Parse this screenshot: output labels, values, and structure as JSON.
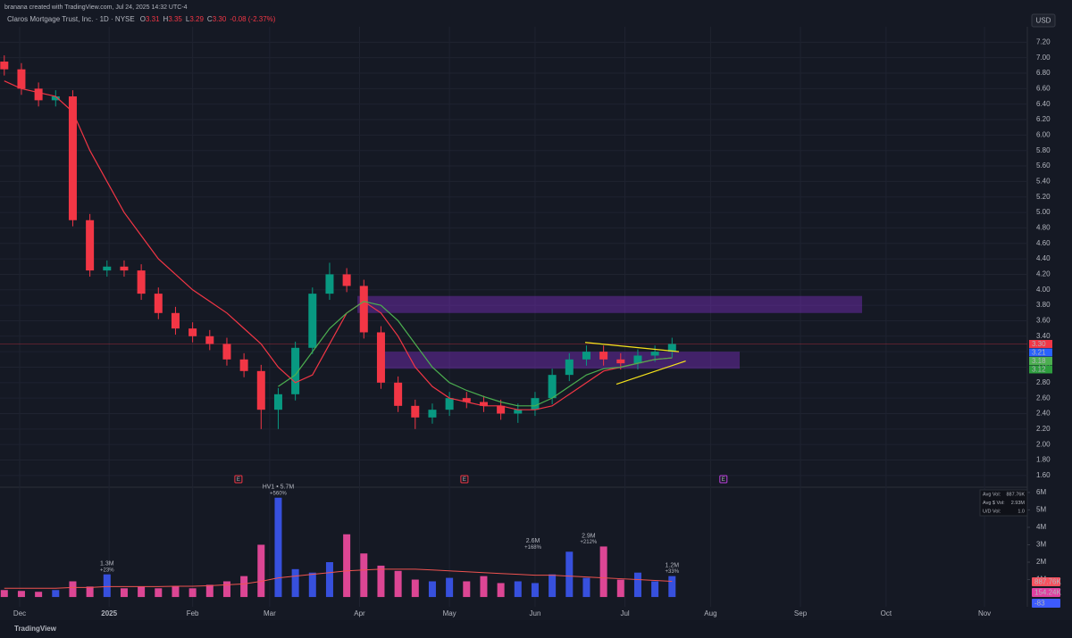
{
  "header": {
    "credit": "branana created with TradingView.com, Jul 24, 2025 14:32 UTC-4",
    "symbol": "Claros Mortgage Trust, Inc. · 1D · NYSE",
    "quote_keys": [
      "O",
      "H",
      "L",
      "C"
    ],
    "currency": "USD"
  },
  "footer": {
    "brand": "TradingView"
  },
  "chart_data": {
    "type": "candlestick",
    "xlim": [
      0,
      240
    ],
    "xticks": [
      {
        "value": 4.6,
        "label": "Dec"
      },
      {
        "value": 25.5,
        "label": "2025",
        "bold": true
      },
      {
        "value": 45,
        "label": "Feb"
      },
      {
        "value": 63,
        "label": "Mar"
      },
      {
        "value": 84,
        "label": "Apr"
      },
      {
        "value": 105,
        "label": "May"
      },
      {
        "value": 125,
        "label": "Jun"
      },
      {
        "value": 146,
        "label": "Jul"
      },
      {
        "value": 166,
        "label": "Aug"
      },
      {
        "value": 187,
        "label": "Sep"
      },
      {
        "value": 207,
        "label": "Oct"
      },
      {
        "value": 230,
        "label": "Nov"
      }
    ],
    "ylim": [
      1.46,
      7.4
    ],
    "yticks": [
      {
        "value": 1.6,
        "label": "1.60"
      },
      {
        "value": 1.8,
        "label": "1.80"
      },
      {
        "value": 2.0,
        "label": "2.00"
      },
      {
        "value": 2.2,
        "label": "2.20"
      },
      {
        "value": 2.4,
        "label": "2.40"
      },
      {
        "value": 2.6,
        "label": "2.60"
      },
      {
        "value": 2.8,
        "label": "2.80"
      },
      {
        "value": 3.0,
        "label": "3.00"
      },
      {
        "value": 3.2,
        "label": "3.20"
      },
      {
        "value": 3.4,
        "label": "3.40"
      },
      {
        "value": 3.6,
        "label": "3.60"
      },
      {
        "value": 3.8,
        "label": "3.80"
      },
      {
        "value": 4.0,
        "label": "4.00"
      },
      {
        "value": 4.2,
        "label": "4.20"
      },
      {
        "value": 4.4,
        "label": "4.40"
      },
      {
        "value": 4.6,
        "label": "4.60"
      },
      {
        "value": 4.8,
        "label": "4.80"
      },
      {
        "value": 5.0,
        "label": "5.00"
      },
      {
        "value": 5.2,
        "label": "5.20"
      },
      {
        "value": 5.4,
        "label": "5.40"
      },
      {
        "value": 5.6,
        "label": "5.60"
      },
      {
        "value": 5.8,
        "label": "5.80"
      },
      {
        "value": 6.0,
        "label": "6.00"
      },
      {
        "value": 6.2,
        "label": "6.20"
      },
      {
        "value": 6.4,
        "label": "6.40"
      },
      {
        "value": 6.6,
        "label": "6.60"
      },
      {
        "value": 6.8,
        "label": "6.80"
      },
      {
        "value": 7.0,
        "label": "7.00"
      },
      {
        "value": 7.2,
        "label": "7.20"
      }
    ],
    "grid": true,
    "up_color": "#089981",
    "down_color": "#f23645",
    "quote": {
      "open": 3.31,
      "high": 3.35,
      "low": 3.29,
      "close": {
        "value": 3.3,
        "label": "3.30"
      },
      "change": {
        "value": -0.08,
        "label": "-0.08 (-2.37%)"
      }
    },
    "x": [
      1,
      5,
      9,
      13,
      17,
      21,
      25,
      29,
      33,
      37,
      41,
      45,
      49,
      53,
      57,
      61,
      65,
      69,
      73,
      77,
      81,
      85,
      89,
      93,
      97,
      101,
      105,
      109,
      113,
      117,
      121,
      125,
      129,
      133,
      137,
      141,
      145,
      149,
      153,
      157
    ],
    "open": [
      6.95,
      6.85,
      6.6,
      6.45,
      6.5,
      4.9,
      4.25,
      4.3,
      4.25,
      3.95,
      3.7,
      3.5,
      3.4,
      3.3,
      3.1,
      2.95,
      2.45,
      2.65,
      3.25,
      3.95,
      4.2,
      4.05,
      3.45,
      2.8,
      2.5,
      2.35,
      2.45,
      2.6,
      2.55,
      2.5,
      2.4,
      2.45,
      2.6,
      2.9,
      3.1,
      3.2,
      3.1,
      3.05,
      3.15,
      3.2
    ],
    "high": [
      7.03,
      6.93,
      6.68,
      6.58,
      6.58,
      4.98,
      4.38,
      4.38,
      4.33,
      4.03,
      3.78,
      3.58,
      3.48,
      3.38,
      3.18,
      3.03,
      2.73,
      3.33,
      4.03,
      4.35,
      4.28,
      4.13,
      3.53,
      2.88,
      2.58,
      2.53,
      2.68,
      2.68,
      2.63,
      2.58,
      2.53,
      2.68,
      2.98,
      3.18,
      3.28,
      3.28,
      3.18,
      3.23,
      3.28,
      3.38
    ],
    "low": [
      6.77,
      6.52,
      6.37,
      6.37,
      4.82,
      4.17,
      4.17,
      4.17,
      3.87,
      3.62,
      3.42,
      3.32,
      3.22,
      3.02,
      2.87,
      2.2,
      2.2,
      2.57,
      3.17,
      3.87,
      3.97,
      3.37,
      2.72,
      2.42,
      2.2,
      2.27,
      2.37,
      2.47,
      2.42,
      2.32,
      2.28,
      2.37,
      2.52,
      2.82,
      3.02,
      3.02,
      2.97,
      2.97,
      3.07,
      3.12
    ],
    "close": [
      6.85,
      6.6,
      6.45,
      6.5,
      4.9,
      4.25,
      4.3,
      4.25,
      3.95,
      3.7,
      3.5,
      3.4,
      3.3,
      3.1,
      2.95,
      2.45,
      2.65,
      3.25,
      3.95,
      4.2,
      4.05,
      3.45,
      2.8,
      2.5,
      2.35,
      2.45,
      2.6,
      2.55,
      2.5,
      2.4,
      2.45,
      2.6,
      2.9,
      3.1,
      3.2,
      3.1,
      3.05,
      3.15,
      3.2,
      3.3
    ],
    "lines": [
      {
        "color": "#f23645",
        "values": [
          6.7,
          6.6,
          6.55,
          6.5,
          6.3,
          5.8,
          5.4,
          5.0,
          4.7,
          4.4,
          4.2,
          4.0,
          3.85,
          3.7,
          3.5,
          3.3,
          3.0,
          2.8,
          2.9,
          3.3,
          3.7,
          3.85,
          3.7,
          3.4,
          3.0,
          2.75,
          2.6,
          2.55,
          2.5,
          2.5,
          2.45,
          2.45,
          2.5,
          2.65,
          2.8,
          2.95,
          3.0,
          3.05,
          3.1,
          3.12
        ]
      },
      {
        "color": "#4caf50",
        "values": [
          null,
          null,
          null,
          null,
          null,
          null,
          null,
          null,
          null,
          null,
          null,
          null,
          null,
          null,
          null,
          null,
          2.75,
          2.9,
          3.2,
          3.5,
          3.7,
          3.85,
          3.8,
          3.6,
          3.3,
          3.0,
          2.8,
          2.7,
          2.62,
          2.55,
          2.5,
          2.5,
          2.6,
          2.75,
          2.9,
          2.98,
          3.0,
          3.05,
          3.1,
          3.12
        ]
      }
    ],
    "zones": [
      {
        "x": [
          83.5,
          201.4
        ],
        "y": [
          3.7,
          3.92
        ],
        "color": "#7b2fbf"
      },
      {
        "x": [
          89.7,
          172.8
        ],
        "y": [
          2.98,
          3.2
        ],
        "color": "#7b2fbf"
      }
    ],
    "trendlines": [
      {
        "x": [
          136.7,
          158.6
        ],
        "y": [
          3.32,
          3.2
        ],
        "color": "#f5e21b"
      },
      {
        "x": [
          144,
          160.2
        ],
        "y": [
          2.78,
          3.08
        ],
        "color": "#f5e21b"
      }
    ],
    "price_labels": [
      {
        "value": 3.3,
        "label": "3.30",
        "color": "#f23645"
      },
      {
        "value": 3.21,
        "label": "3.21",
        "color": "#2962ff"
      },
      {
        "value": 3.18,
        "label": "3.18",
        "color": "#4caf50"
      },
      {
        "value": 3.12,
        "label": "3.12",
        "color": "#2e9e3e"
      }
    ],
    "earnings": {
      "label": "E",
      "x": [
        55.7,
        108.5,
        169
      ],
      "colors": [
        "#f23645",
        "#f23645",
        "#c040e0"
      ]
    },
    "volume": {
      "ylim": [
        -0.56,
        6.2
      ],
      "yticks": [
        {
          "value": 1,
          "label": "1M"
        },
        {
          "value": 2,
          "label": "2M"
        },
        {
          "value": 3,
          "label": "3M"
        },
        {
          "value": 4,
          "label": "4M"
        },
        {
          "value": 5,
          "label": "5M"
        },
        {
          "value": 6,
          "label": "6M"
        }
      ],
      "up_color": "#3d5afe",
      "down_color": "#ff4fa8",
      "avg_color": "#ef5350",
      "values": [
        0.4,
        0.35,
        0.3,
        0.4,
        0.9,
        0.6,
        1.3,
        0.5,
        0.6,
        0.5,
        0.6,
        0.5,
        0.7,
        0.9,
        1.2,
        3.0,
        5.7,
        1.6,
        1.4,
        2.0,
        3.6,
        2.5,
        1.8,
        1.5,
        1.0,
        0.9,
        1.1,
        0.9,
        1.2,
        0.8,
        0.9,
        0.8,
        1.3,
        2.6,
        1.1,
        2.9,
        1.0,
        1.4,
        0.9,
        1.2
      ],
      "avg": [
        0.5,
        0.5,
        0.5,
        0.5,
        0.55,
        0.55,
        0.6,
        0.6,
        0.6,
        0.6,
        0.62,
        0.62,
        0.65,
        0.7,
        0.75,
        0.9,
        1.1,
        1.2,
        1.3,
        1.4,
        1.5,
        1.55,
        1.6,
        1.6,
        1.6,
        1.55,
        1.5,
        1.45,
        1.4,
        1.35,
        1.3,
        1.25,
        1.25,
        1.2,
        1.15,
        1.1,
        1.05,
        1.0,
        0.95,
        0.9
      ],
      "annotations": [
        {
          "x": 25,
          "value": 1.3,
          "label": "1.3M",
          "sub": "+23%"
        },
        {
          "x": 65,
          "value": 5.7,
          "label": "HV1 • 5.7M",
          "sub": "+560%"
        },
        {
          "x": 124.5,
          "value": 2.6,
          "label": "2.6M",
          "sub": "+168%"
        },
        {
          "x": 137.5,
          "value": 2.9,
          "label": "2.9M",
          "sub": "+212%"
        },
        {
          "x": 157,
          "value": 1.2,
          "label": "1.2M",
          "sub": "+33%"
        }
      ],
      "info": [
        [
          "Avg Vol:",
          "887.76K"
        ],
        [
          "Avg $ Vol:",
          "2.93M"
        ],
        [
          "U/D Vol:",
          "1.0"
        ]
      ],
      "badges": [
        {
          "label": "887.76K",
          "color": "#f7525f"
        },
        {
          "label": "154.24K",
          "color": "#e040a0"
        },
        {
          "label": "-83",
          "color": "#3d5afe"
        }
      ]
    }
  }
}
